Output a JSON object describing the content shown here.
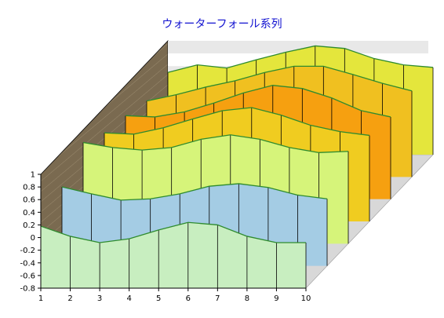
{
  "chart_data": {
    "type": "waterfall-3d",
    "title": "ウォーターフォール系列",
    "x": [
      1,
      2,
      3,
      4,
      5,
      6,
      7,
      8,
      9,
      10
    ],
    "ylim": [
      -0.8,
      1.0
    ],
    "y_ticks": [
      "1",
      "0.8",
      "0.6",
      "0.4",
      "0.2",
      "0",
      "-0.2",
      "-0.4",
      "-0.6",
      "-0.8"
    ],
    "series": [
      {
        "values": [
          0.5,
          0.62,
          0.57,
          0.7,
          0.82,
          0.92,
          0.88,
          0.72,
          0.62,
          0.58
        ],
        "color": "#e4e63c"
      },
      {
        "values": [
          0.4,
          0.5,
          0.62,
          0.72,
          0.85,
          0.95,
          0.95,
          0.82,
          0.68,
          0.56
        ],
        "color": "#f0c020"
      },
      {
        "values": [
          0.52,
          0.5,
          0.58,
          0.72,
          0.88,
          1.0,
          0.95,
          0.8,
          0.6,
          0.5
        ],
        "color": "#f6a010"
      },
      {
        "values": [
          0.6,
          0.58,
          0.68,
          0.82,
          0.95,
          1.0,
          0.88,
          0.72,
          0.62,
          0.56
        ],
        "color": "#f0cc20"
      },
      {
        "values": [
          0.8,
          0.72,
          0.68,
          0.72,
          0.85,
          0.92,
          0.85,
          0.72,
          0.64,
          0.66
        ],
        "color": "#d6f47a"
      },
      {
        "values": [
          0.45,
          0.34,
          0.24,
          0.26,
          0.34,
          0.46,
          0.5,
          0.44,
          0.32,
          0.26
        ],
        "color": "#a4cce4"
      },
      {
        "values": [
          0.18,
          0.02,
          -0.08,
          -0.02,
          0.12,
          0.24,
          0.2,
          0.02,
          -0.08,
          -0.08
        ],
        "color": "#c8eec0"
      }
    ],
    "grid": true
  }
}
